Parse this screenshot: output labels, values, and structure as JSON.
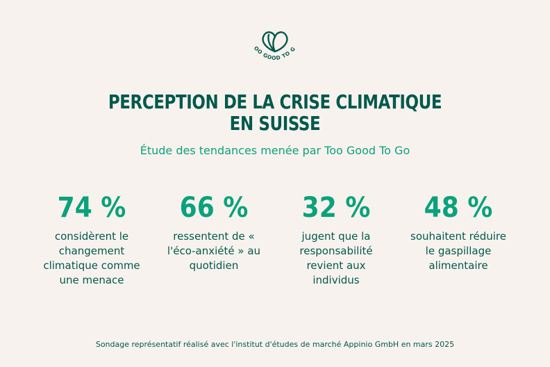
{
  "logo": {
    "icon": "leaf-heart-icon",
    "text": "TOO GOOD TO GO"
  },
  "title": {
    "line1": "PERCEPTION DE LA CRISE CLIMATIQUE",
    "line2": "EN SUISSE"
  },
  "subtitle": "Étude des tendances menée par Too Good To Go",
  "stats": [
    {
      "value": "74 %",
      "description": "considèrent le changement climatique comme une menace"
    },
    {
      "value": "66 %",
      "description": "ressentent de « l'éco-anxiété » au quotidien"
    },
    {
      "value": "32 %",
      "description": "jugent que la responsabilité revient aux individus"
    },
    {
      "value": "48 %",
      "description": "souhaitent réduire le gaspillage alimentaire"
    }
  ],
  "footer": "Sondage représentatif réalisé avec l'institut d'études de marché Appinio GmbH en mars 2025",
  "colors": {
    "background": "#f8f2ee",
    "dark_green": "#00594c",
    "accent_green": "#0aa27b"
  }
}
